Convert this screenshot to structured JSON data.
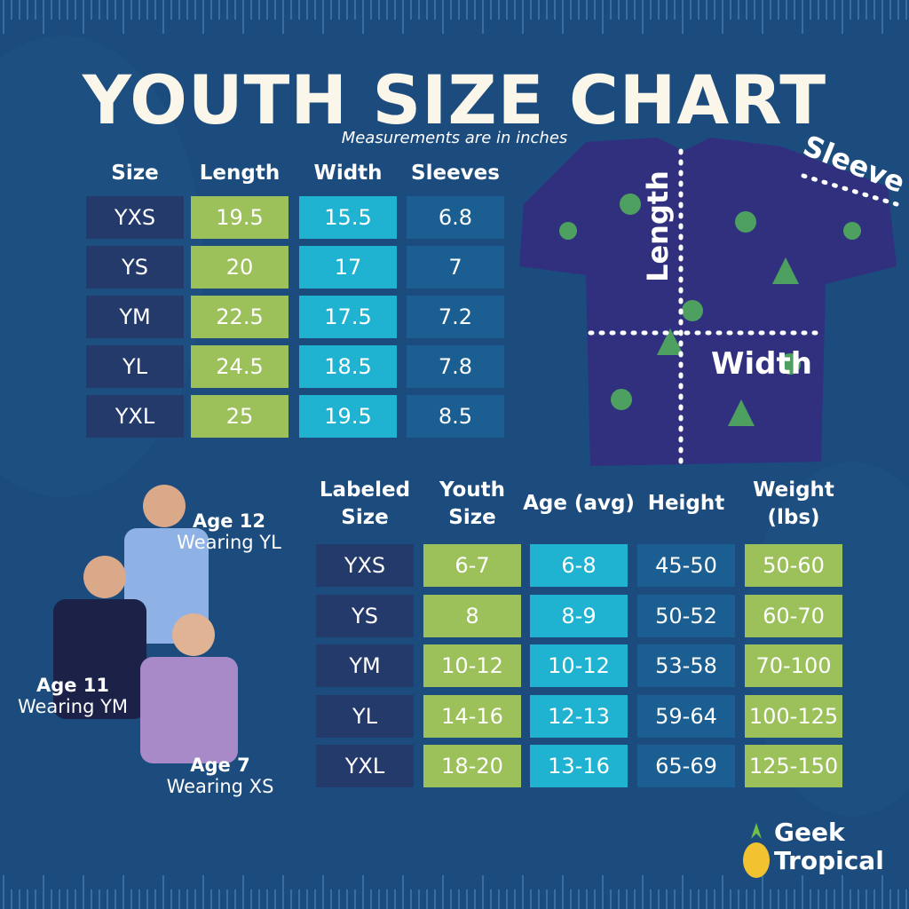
{
  "header": {
    "title": "YOUTH SIZE CHART",
    "subtitle": "Measurements are in inches"
  },
  "measurements": {
    "columns": [
      "Size",
      "Length",
      "Width",
      "Sleeves"
    ],
    "rows": [
      [
        "YXS",
        19.5,
        15.5,
        6.8
      ],
      [
        "YS",
        20,
        17,
        7
      ],
      [
        "YM",
        22.5,
        17.5,
        7.2
      ],
      [
        "YL",
        24.5,
        18.5,
        7.8
      ],
      [
        "YXL",
        25,
        19.5,
        8.5
      ]
    ]
  },
  "diagram": {
    "length": "Length",
    "width": "Width",
    "sleeve": "Sleeve"
  },
  "sizing": {
    "columns": [
      "Labeled Size",
      "Youth Size",
      "Age (avg)",
      "Height",
      "Weight (lbs)"
    ],
    "rows": [
      [
        "YXS",
        "6-7",
        "6-8",
        "45-50",
        "50-60"
      ],
      [
        "YS",
        "8",
        "8-9",
        "50-52",
        "60-70"
      ],
      [
        "YM",
        "10-12",
        "10-12",
        "53-58",
        "70-100"
      ],
      [
        "YL",
        "14-16",
        "12-13",
        "59-64",
        "100-125"
      ],
      [
        "YXL",
        "18-20",
        "13-16",
        "65-69",
        "125-150"
      ]
    ]
  },
  "models": [
    {
      "age": "Age 12",
      "wearing": "Wearing YL"
    },
    {
      "age": "Age 11",
      "wearing": "Wearing YM"
    },
    {
      "age": "Age 7",
      "wearing": "Wearing XS"
    }
  ],
  "brand": {
    "line1": "Geek",
    "line2": "Tropical"
  }
}
